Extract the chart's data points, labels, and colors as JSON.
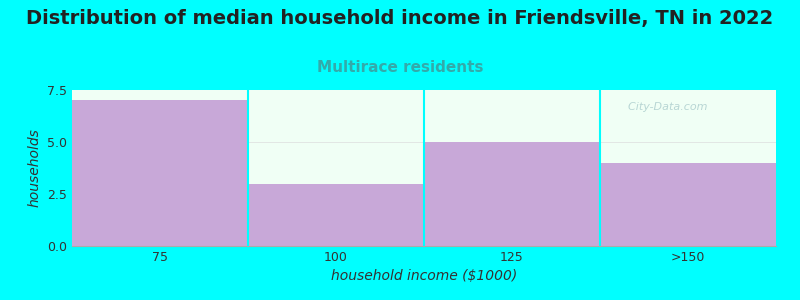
{
  "title": "Distribution of median household income in Friendsville, TN in 2022",
  "subtitle": "Multirace residents",
  "xlabel": "household income ($1000)",
  "ylabel": "households",
  "categories": [
    "75",
    "100",
    "125",
    ">150"
  ],
  "values": [
    7.0,
    3.0,
    5.0,
    4.0
  ],
  "bar_color": "#C8A8D8",
  "bar_edge_color": "none",
  "background_color": "#00FFFF",
  "plot_bg_color": "#F0FFF5",
  "ylim": [
    0,
    7.5
  ],
  "yticks": [
    0,
    2.5,
    5,
    7.5
  ],
  "title_fontsize": 14,
  "subtitle_fontsize": 11,
  "subtitle_color": "#33AAAA",
  "tick_label_fontsize": 9,
  "axis_label_fontsize": 10,
  "watermark_text": "  City-Data.com",
  "bar_width": 1.0
}
